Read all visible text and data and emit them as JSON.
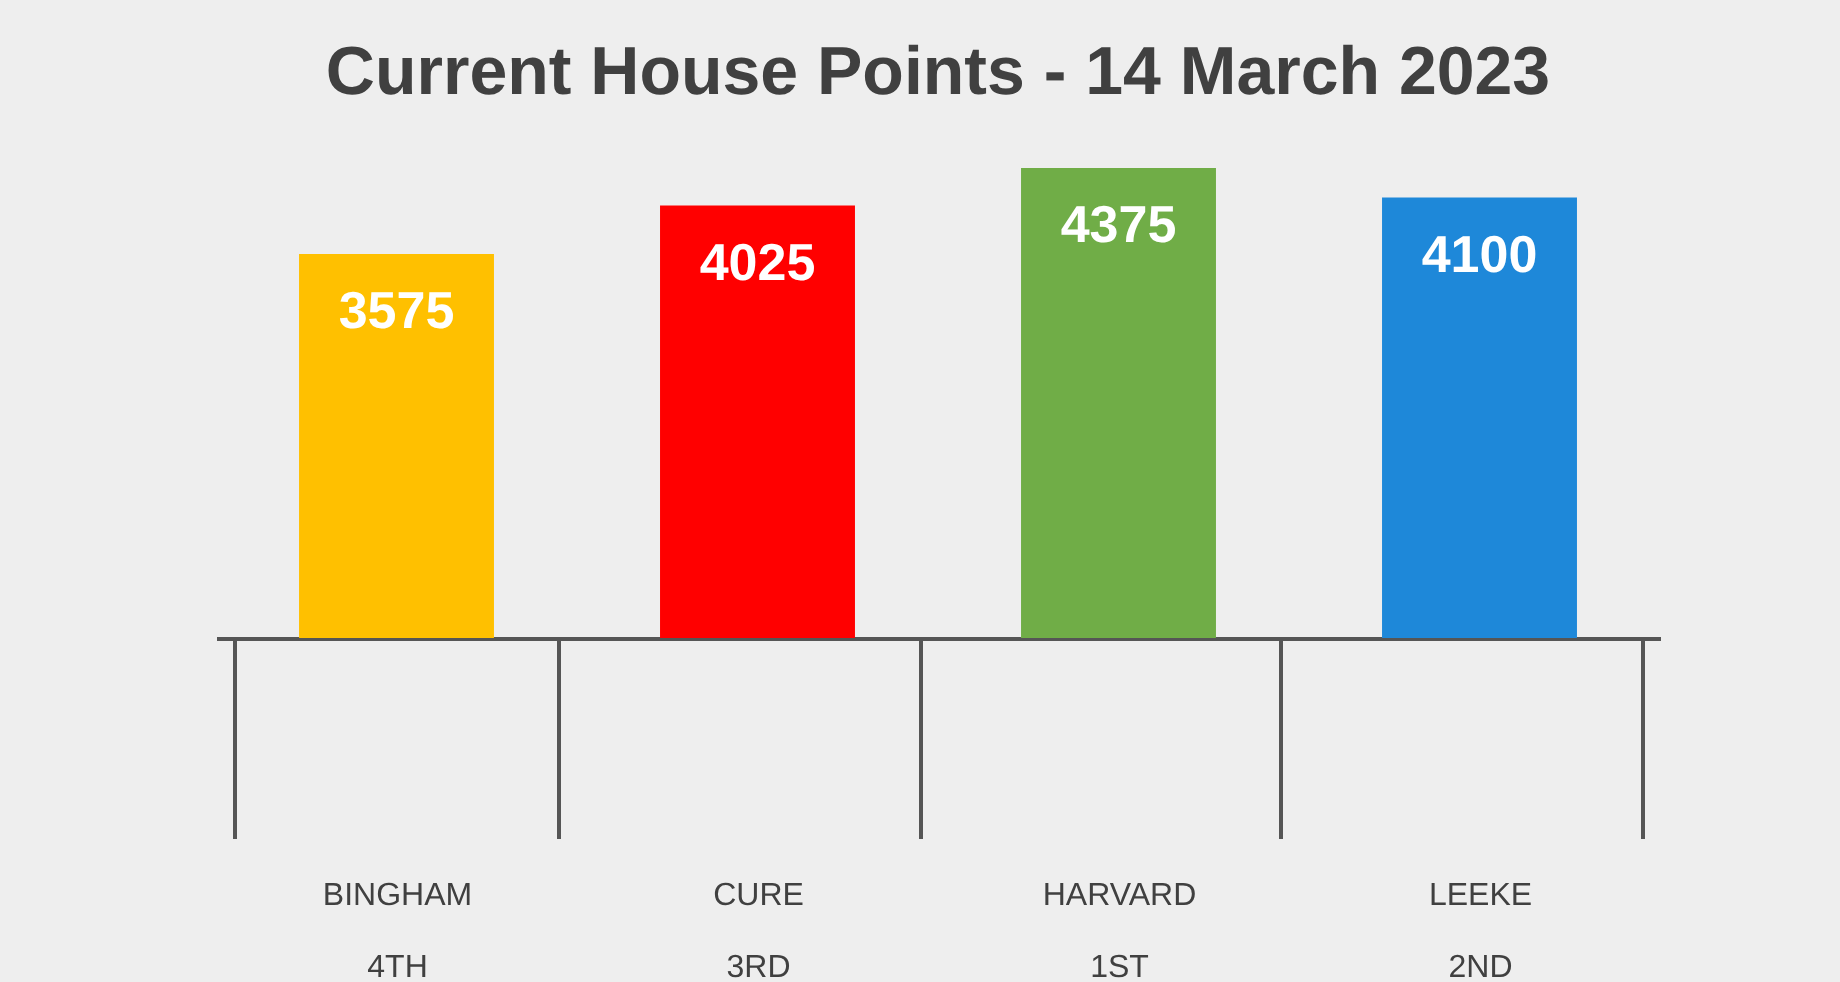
{
  "chart_data": {
    "type": "bar",
    "title": "Current House Points - 14 March 2023",
    "categories": [
      "BINGHAM\n4TH",
      "CURE\n3RD",
      "HARVARD\n1ST",
      "LEEKE\n2ND"
    ],
    "values": [
      3575,
      4025,
      4375,
      4100
    ],
    "colors": [
      "#ffc000",
      "#ff0000",
      "#70ad47",
      "#1e88d9"
    ],
    "data_labels": true
  }
}
